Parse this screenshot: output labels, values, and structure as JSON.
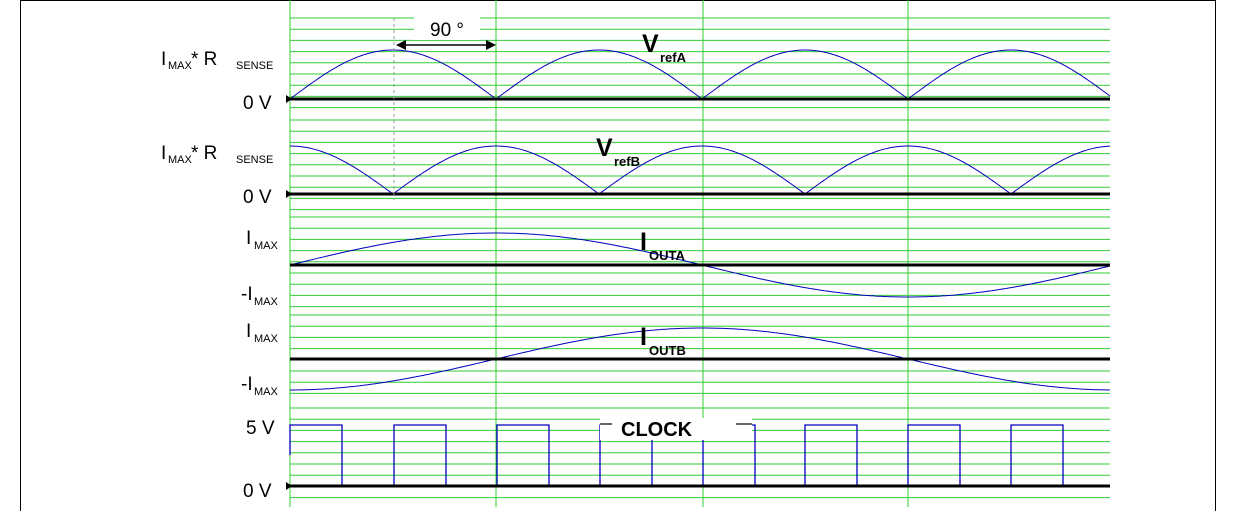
{
  "phase_marker": {
    "text": "90 °"
  },
  "panels": [
    {
      "id": "vrefa",
      "title_main": "V",
      "title_sub": "refA",
      "top_label": {
        "main": "I",
        "sub": "MAX",
        "rest": " * R",
        "rest_sub": "SENSE"
      },
      "bottom_label": {
        "main": "0 V",
        "sub": ""
      }
    },
    {
      "id": "vrefb",
      "title_main": "V",
      "title_sub": "refB",
      "top_label": {
        "main": "I",
        "sub": "MAX",
        "rest": " * R",
        "rest_sub": "SENSE"
      },
      "bottom_label": {
        "main": "0 V",
        "sub": ""
      }
    },
    {
      "id": "iouta",
      "title_main": "I",
      "title_sub": "OUTA",
      "top_label": {
        "main": "I",
        "sub": "MAX",
        "rest": "",
        "rest_sub": ""
      },
      "bottom_label": {
        "main": "-I",
        "sub": "MAX"
      }
    },
    {
      "id": "ioutb",
      "title_main": "I",
      "title_sub": "OUTB",
      "top_label": {
        "main": "I",
        "sub": "MAX",
        "rest": "",
        "rest_sub": ""
      },
      "bottom_label": {
        "main": "-I",
        "sub": "MAX"
      }
    },
    {
      "id": "clock",
      "title_main": "CLOCK",
      "title_sub": "",
      "top_label": {
        "main": "5 V",
        "sub": "",
        "rest": "",
        "rest_sub": ""
      },
      "bottom_label": {
        "main": "0 V",
        "sub": ""
      }
    }
  ],
  "colors": {
    "grid": "#33cc33",
    "trace": "#0000bb",
    "axis": "#000000"
  }
}
